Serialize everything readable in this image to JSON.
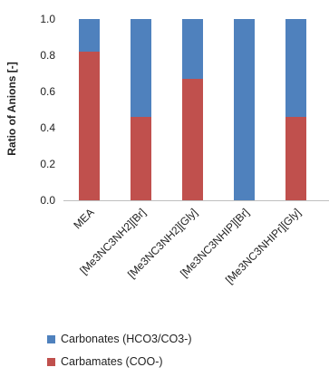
{
  "chart_data": {
    "type": "bar",
    "stacked": true,
    "ylabel": "Ratio of Anions [-]",
    "xlabel": "",
    "ylim": [
      0,
      1.0
    ],
    "yticks": [
      "0.0",
      "0.2",
      "0.4",
      "0.6",
      "0.8",
      "1.0"
    ],
    "categories": [
      "MEA",
      "[Me3NC3NH2][Br]",
      "[Me3NC3NH2][Gly]",
      "[Me3NC3NHIP][Br]",
      "[Me3NC3NHIPr][Gly]"
    ],
    "series": [
      {
        "name": "Carbamates (COO-)",
        "color": "#c0504d",
        "values": [
          0.82,
          0.46,
          0.67,
          0.0,
          0.46
        ]
      },
      {
        "name": "Carbonates (HCO3/CO3-)",
        "color": "#4f81bd",
        "values": [
          0.18,
          0.54,
          0.33,
          1.0,
          0.54
        ]
      }
    ],
    "grid": false,
    "legend_position": "bottom"
  },
  "legend": {
    "items": [
      {
        "label": "Carbonates (HCO3/CO3-)",
        "color": "#4f81bd"
      },
      {
        "label": "Carbamates (COO-)",
        "color": "#c0504d"
      }
    ]
  }
}
